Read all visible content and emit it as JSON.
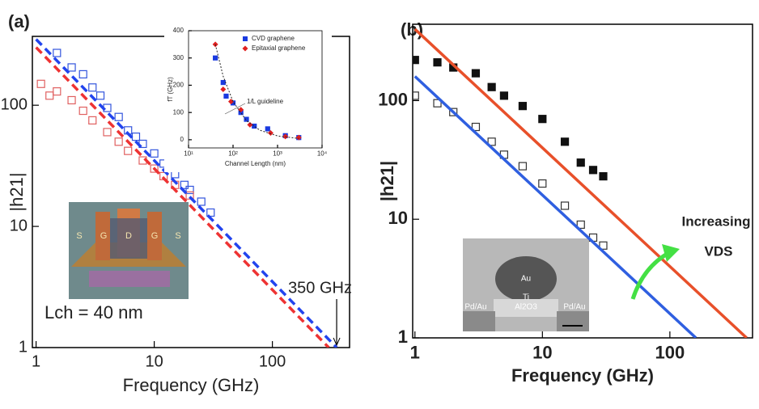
{
  "panel_labels": [
    "(a)",
    "(b)"
  ],
  "image_labels": {
    "device": [
      "S",
      "G",
      "D",
      "G",
      "S"
    ],
    "tem": [
      "Au",
      "Ti",
      "Al2O3",
      "Pd/Au",
      "Pd/Au"
    ]
  },
  "chart_data": [
    {
      "type": "scatter",
      "xlabel": "Frequency (GHz)",
      "ylabel": "|h21|",
      "xscale": "log",
      "yscale": "log",
      "xlim": [
        0.93,
        450
      ],
      "ylim": [
        1,
        370
      ],
      "xticks": [
        1,
        10,
        100
      ],
      "yticks": [
        1,
        10,
        100
      ],
      "series": [
        {
          "color": "#3355dd",
          "marker": "square-open",
          "x": [
            1.5,
            2,
            2.5,
            3,
            3.5,
            4,
            5,
            6,
            7,
            8,
            10,
            12,
            15,
            18,
            20,
            25,
            30
          ],
          "values": [
            270,
            205,
            180,
            140,
            120,
            95,
            80,
            62,
            55,
            48,
            40,
            33,
            27,
            22,
            20,
            16,
            13
          ]
        },
        {
          "color": "#e06060",
          "marker": "square-open",
          "x": [
            1.1,
            1.3,
            1.5,
            2,
            2.5,
            3,
            4,
            5,
            6,
            8,
            10,
            12,
            15,
            20
          ],
          "values": [
            150,
            120,
            130,
            110,
            90,
            75,
            60,
            50,
            42,
            35,
            30,
            26,
            22,
            18
          ]
        },
        {
          "color": "#2244ee",
          "marker": "dashed",
          "x": [
            1,
            350
          ],
          "values": [
            350,
            1
          ]
        },
        {
          "color": "#ee3333",
          "marker": "dashed",
          "x": [
            1,
            300
          ],
          "values": [
            300,
            1
          ]
        }
      ],
      "annotations": [
        {
          "text": "350 GHz",
          "x": 350
        },
        {
          "text": "Lch = 40 nm"
        }
      ]
    },
    {
      "type": "scatter",
      "xlabel": "Channel Length (nm)",
      "ylabel": "fT (GHz)",
      "xscale": "log",
      "yscale": "linear",
      "xlim": [
        10,
        10000
      ],
      "ylim": [
        -30,
        400
      ],
      "xticks": [
        {
          "value": 10,
          "label": "10¹"
        },
        {
          "value": 100,
          "label": "10²"
        },
        {
          "value": 1000,
          "label": "10³"
        },
        {
          "value": 10000,
          "label": "10⁴"
        }
      ],
      "yticks": [
        0,
        100,
        200,
        300,
        400
      ],
      "legend": "upper right",
      "series": [
        {
          "name": "CVD graphene",
          "color": "#1a3ae0",
          "marker": "square",
          "x": [
            40,
            60,
            70,
            100,
            150,
            200,
            300,
            600,
            1500,
            3000
          ],
          "values": [
            300,
            210,
            160,
            135,
            100,
            75,
            50,
            40,
            15,
            8
          ]
        },
        {
          "name": "Epitaxial graphene",
          "color": "#e02020",
          "marker": "diamond",
          "x": [
            40,
            60,
            90,
            150,
            240,
            700,
            1500,
            3000
          ],
          "values": [
            350,
            185,
            140,
            110,
            55,
            25,
            12,
            8
          ]
        },
        {
          "color": "#222222",
          "marker": "dotted",
          "x": [
            40,
            60,
            100,
            200,
            400,
            1000,
            3000
          ],
          "values": [
            350,
            233,
            140,
            70,
            35,
            14,
            4.7
          ]
        }
      ],
      "annotations": [
        {
          "text": "1/L guideline"
        }
      ]
    },
    {
      "type": "scatter",
      "xlabel": "Frequency (GHz)",
      "ylabel": "|h21|",
      "xscale": "log",
      "yscale": "log",
      "xlim": [
        0.96,
        445
      ],
      "ylim": [
        1,
        440
      ],
      "xticks": [
        1,
        10,
        100
      ],
      "yticks": [
        1,
        10,
        100
      ],
      "series": [
        {
          "color": "#111111",
          "marker": "square",
          "x": [
            1,
            1.5,
            2,
            3,
            4,
            5,
            7,
            10,
            15,
            20,
            25,
            30
          ],
          "values": [
            220,
            210,
            190,
            170,
            130,
            110,
            90,
            70,
            45,
            30,
            26,
            23
          ]
        },
        {
          "color": "#333333",
          "marker": "square-open",
          "x": [
            1,
            1.5,
            2,
            3,
            4,
            5,
            7,
            10,
            15,
            20,
            25,
            30
          ],
          "values": [
            110,
            95,
            80,
            60,
            45,
            35,
            28,
            20,
            13,
            9,
            7,
            6
          ]
        },
        {
          "color": "#e8502a",
          "marker": "line",
          "x": [
            1,
            400
          ],
          "values": [
            400,
            1
          ]
        },
        {
          "color": "#2f5fe0",
          "marker": "line",
          "x": [
            1,
            160
          ],
          "values": [
            160,
            1
          ]
        }
      ],
      "annotations": [
        {
          "text": "Increasing"
        },
        {
          "text": "VDS"
        }
      ]
    }
  ]
}
